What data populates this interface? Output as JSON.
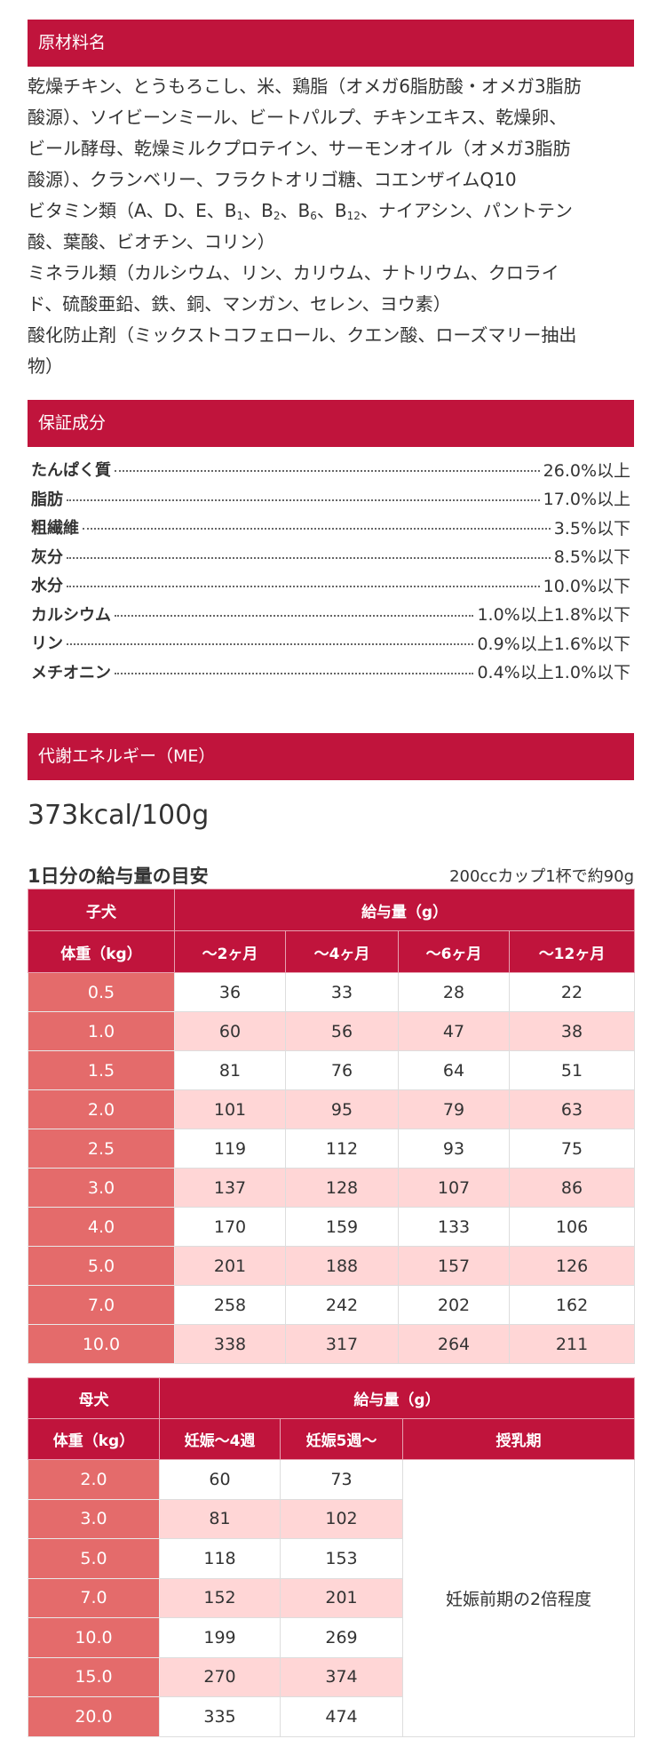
{
  "sections": {
    "ingredients_title": "原材料名",
    "guarantee_title": "保証成分",
    "energy_title": "代謝エネルギー（ME）"
  },
  "ingredients": {
    "lines": [
      "乾燥チキン、とうもろこし、米、鶏脂（オメガ6脂肪酸・オメガ3脂肪",
      "酸源）、ソイビーンミール、ビートパルプ、チキンエキス、乾燥卵、",
      "ビール酵母、乾燥ミルクプロテイン、サーモンオイル（オメガ3脂肪",
      "酸源）、クランベリー、フラクトオリゴ糖、コエンザイムQ10"
    ],
    "vitamin_segments": [
      {
        "text": "ビタミン類（A、D、E、B"
      },
      {
        "sub": "1"
      },
      {
        "text": "、B"
      },
      {
        "sub": "2"
      },
      {
        "text": "、B"
      },
      {
        "sub": "6"
      },
      {
        "text": "、B"
      },
      {
        "sub": "12"
      },
      {
        "text": "、ナイアシン、パントテン"
      }
    ],
    "lines_after": [
      "酸、葉酸、ビオチン、コリン）",
      "ミネラル類（カルシウム、リン、カリウム、ナトリウム、クロライ",
      "ド、硫酸亜鉛、鉄、銅、マンガン、セレン、ヨウ素）",
      "酸化防止剤（ミックストコフェロール、クエン酸、ローズマリー抽出",
      "物）"
    ]
  },
  "nutrients": [
    {
      "label": "たんぱく質",
      "value": "26.0%以上"
    },
    {
      "label": "脂肪",
      "value": "17.0%以上"
    },
    {
      "label": "粗繊維",
      "value": "3.5%以下"
    },
    {
      "label": "灰分",
      "value": "8.5%以下"
    },
    {
      "label": "水分",
      "value": "10.0%以下"
    },
    {
      "label": "カルシウム",
      "value": "1.0%以上1.8%以下"
    },
    {
      "label": "リン",
      "value": "0.9%以上1.6%以下"
    },
    {
      "label": "メチオニン",
      "value": "0.4%以上1.0%以下"
    }
  ],
  "energy": "373kcal/100g",
  "feeding": {
    "title": "1日分の給与量の目安",
    "note": "200ccカップ1杯で約90g"
  },
  "puppy_table": {
    "corner": "子犬",
    "group_header": "給与量（g）",
    "weight_header": "体重（kg）",
    "columns": [
      "～2ヶ月",
      "～4ヶ月",
      "～6ヶ月",
      "～12ヶ月"
    ],
    "rows": [
      {
        "weight": "0.5",
        "values": [
          "36",
          "33",
          "28",
          "22"
        ]
      },
      {
        "weight": "1.0",
        "values": [
          "60",
          "56",
          "47",
          "38"
        ]
      },
      {
        "weight": "1.5",
        "values": [
          "81",
          "76",
          "64",
          "51"
        ]
      },
      {
        "weight": "2.0",
        "values": [
          "101",
          "95",
          "79",
          "63"
        ]
      },
      {
        "weight": "2.5",
        "values": [
          "119",
          "112",
          "93",
          "75"
        ]
      },
      {
        "weight": "3.0",
        "values": [
          "137",
          "128",
          "107",
          "86"
        ]
      },
      {
        "weight": "4.0",
        "values": [
          "170",
          "159",
          "133",
          "106"
        ]
      },
      {
        "weight": "5.0",
        "values": [
          "201",
          "188",
          "157",
          "126"
        ]
      },
      {
        "weight": "7.0",
        "values": [
          "258",
          "242",
          "202",
          "162"
        ]
      },
      {
        "weight": "10.0",
        "values": [
          "338",
          "317",
          "264",
          "211"
        ]
      }
    ]
  },
  "mother_table": {
    "corner": "母犬",
    "group_header": "給与量（g）",
    "weight_header": "体重（kg）",
    "columns": [
      "妊娠～4週",
      "妊娠5週～",
      "授乳期"
    ],
    "lactation_note": "妊娠前期の2倍程度",
    "rows": [
      {
        "weight": "2.0",
        "values": [
          "60",
          "73"
        ]
      },
      {
        "weight": "3.0",
        "values": [
          "81",
          "102"
        ]
      },
      {
        "weight": "5.0",
        "values": [
          "118",
          "153"
        ]
      },
      {
        "weight": "7.0",
        "values": [
          "152",
          "201"
        ]
      },
      {
        "weight": "10.0",
        "values": [
          "199",
          "269"
        ]
      },
      {
        "weight": "15.0",
        "values": [
          "270",
          "374"
        ]
      },
      {
        "weight": "20.0",
        "values": [
          "335",
          "474"
        ]
      }
    ]
  },
  "colors": {
    "header_bg": "#c0143c",
    "weight_col_bg": "#e46b6b",
    "alt_row_bg": "#ffd6d6"
  }
}
